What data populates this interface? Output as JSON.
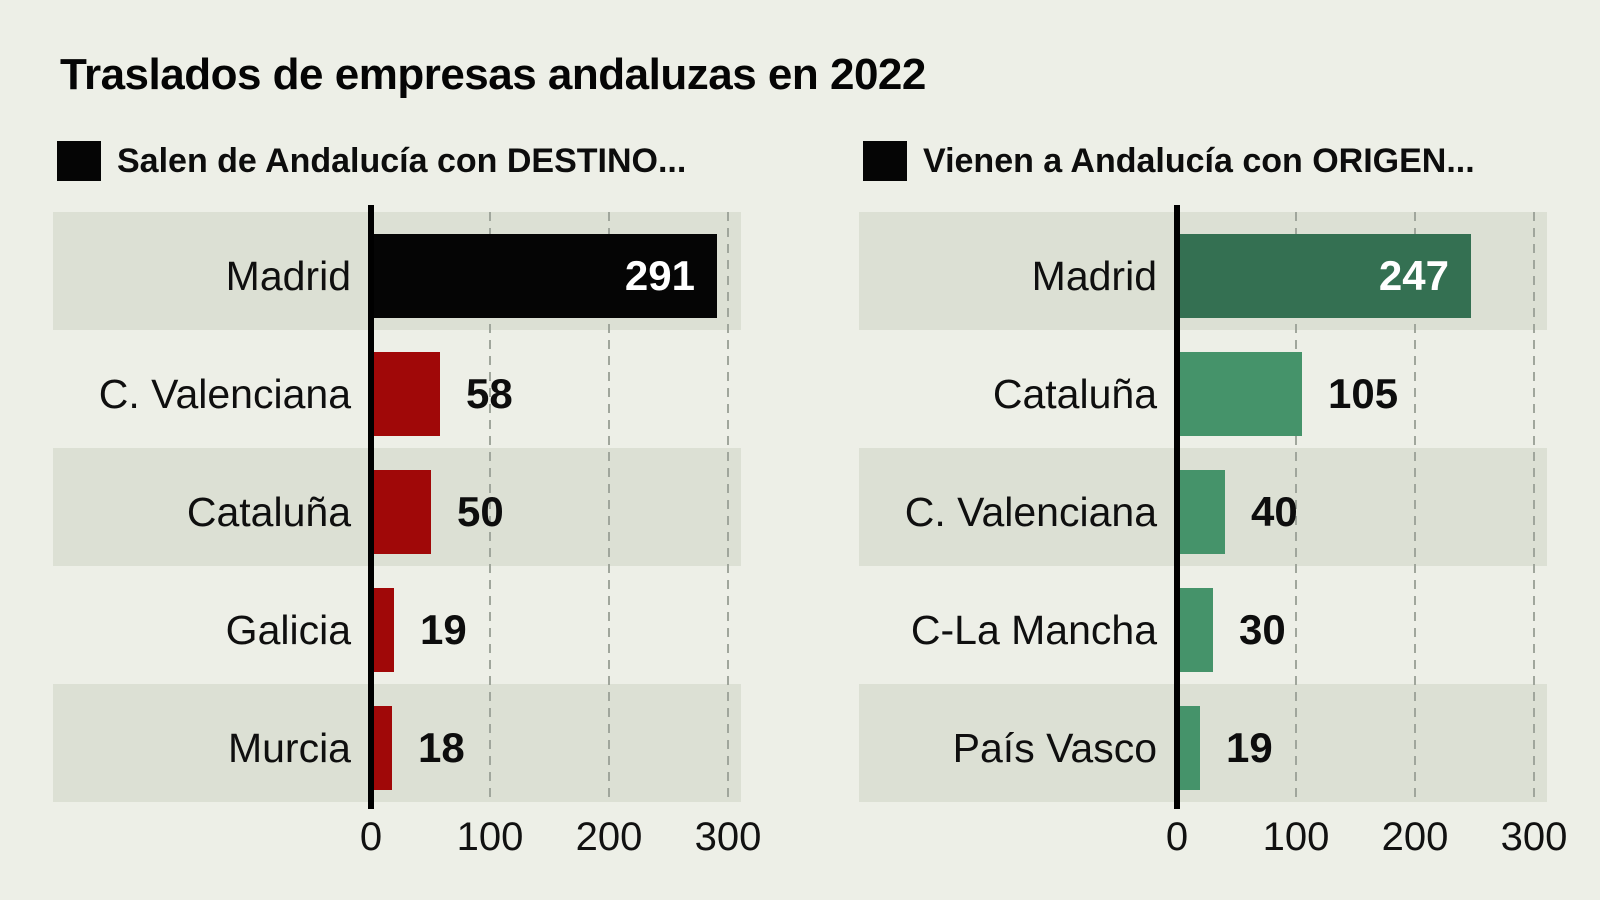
{
  "page_title": "Traslados de empresas andaluzas en 2022",
  "colors": {
    "background": "#edefe7",
    "row_stripe": "#dce0d4",
    "axis": "#000000",
    "gridline": "#a0a69c",
    "black_bar": "#050505",
    "red_bar": "#a00808",
    "dark_green_bar": "#347052",
    "green_bar": "#45936a"
  },
  "chart_data": [
    {
      "type": "bar",
      "orientation": "horizontal",
      "title": "Salen de Andalucía con DESTINO...",
      "legend_color": "#050505",
      "categories": [
        "Madrid",
        "C. Valenciana",
        "Cataluña",
        "Galicia",
        "Murcia"
      ],
      "values": [
        291,
        58,
        50,
        19,
        18
      ],
      "value_labels": [
        "291",
        "58",
        "50",
        "19",
        "18"
      ],
      "value_label_inside": [
        true,
        false,
        false,
        false,
        false
      ],
      "bar_colors": [
        "#050505",
        "#a00808",
        "#a00808",
        "#a00808",
        "#a00808"
      ],
      "xlim": [
        0,
        300
      ],
      "xticks": [
        0,
        100,
        200,
        300
      ],
      "xtick_labels": [
        "0",
        "100",
        "200",
        "300"
      ],
      "grid": "dashed-vertical",
      "striped_rows": [
        0,
        2,
        4
      ]
    },
    {
      "type": "bar",
      "orientation": "horizontal",
      "title": "Vienen a Andalucía con ORIGEN...",
      "legend_color": "#050505",
      "categories": [
        "Madrid",
        "Cataluña",
        "C. Valenciana",
        "C-La Mancha",
        "País Vasco"
      ],
      "values": [
        247,
        105,
        40,
        30,
        19
      ],
      "value_labels": [
        "247",
        "105",
        "40",
        "30",
        "19"
      ],
      "value_label_inside": [
        true,
        false,
        false,
        false,
        false
      ],
      "bar_colors": [
        "#347052",
        "#45936a",
        "#45936a",
        "#45936a",
        "#45936a"
      ],
      "xlim": [
        0,
        300
      ],
      "xticks": [
        0,
        100,
        200,
        300
      ],
      "xtick_labels": [
        "0",
        "100",
        "200",
        "300"
      ],
      "grid": "dashed-vertical",
      "striped_rows": [
        0,
        2,
        4
      ]
    }
  ]
}
